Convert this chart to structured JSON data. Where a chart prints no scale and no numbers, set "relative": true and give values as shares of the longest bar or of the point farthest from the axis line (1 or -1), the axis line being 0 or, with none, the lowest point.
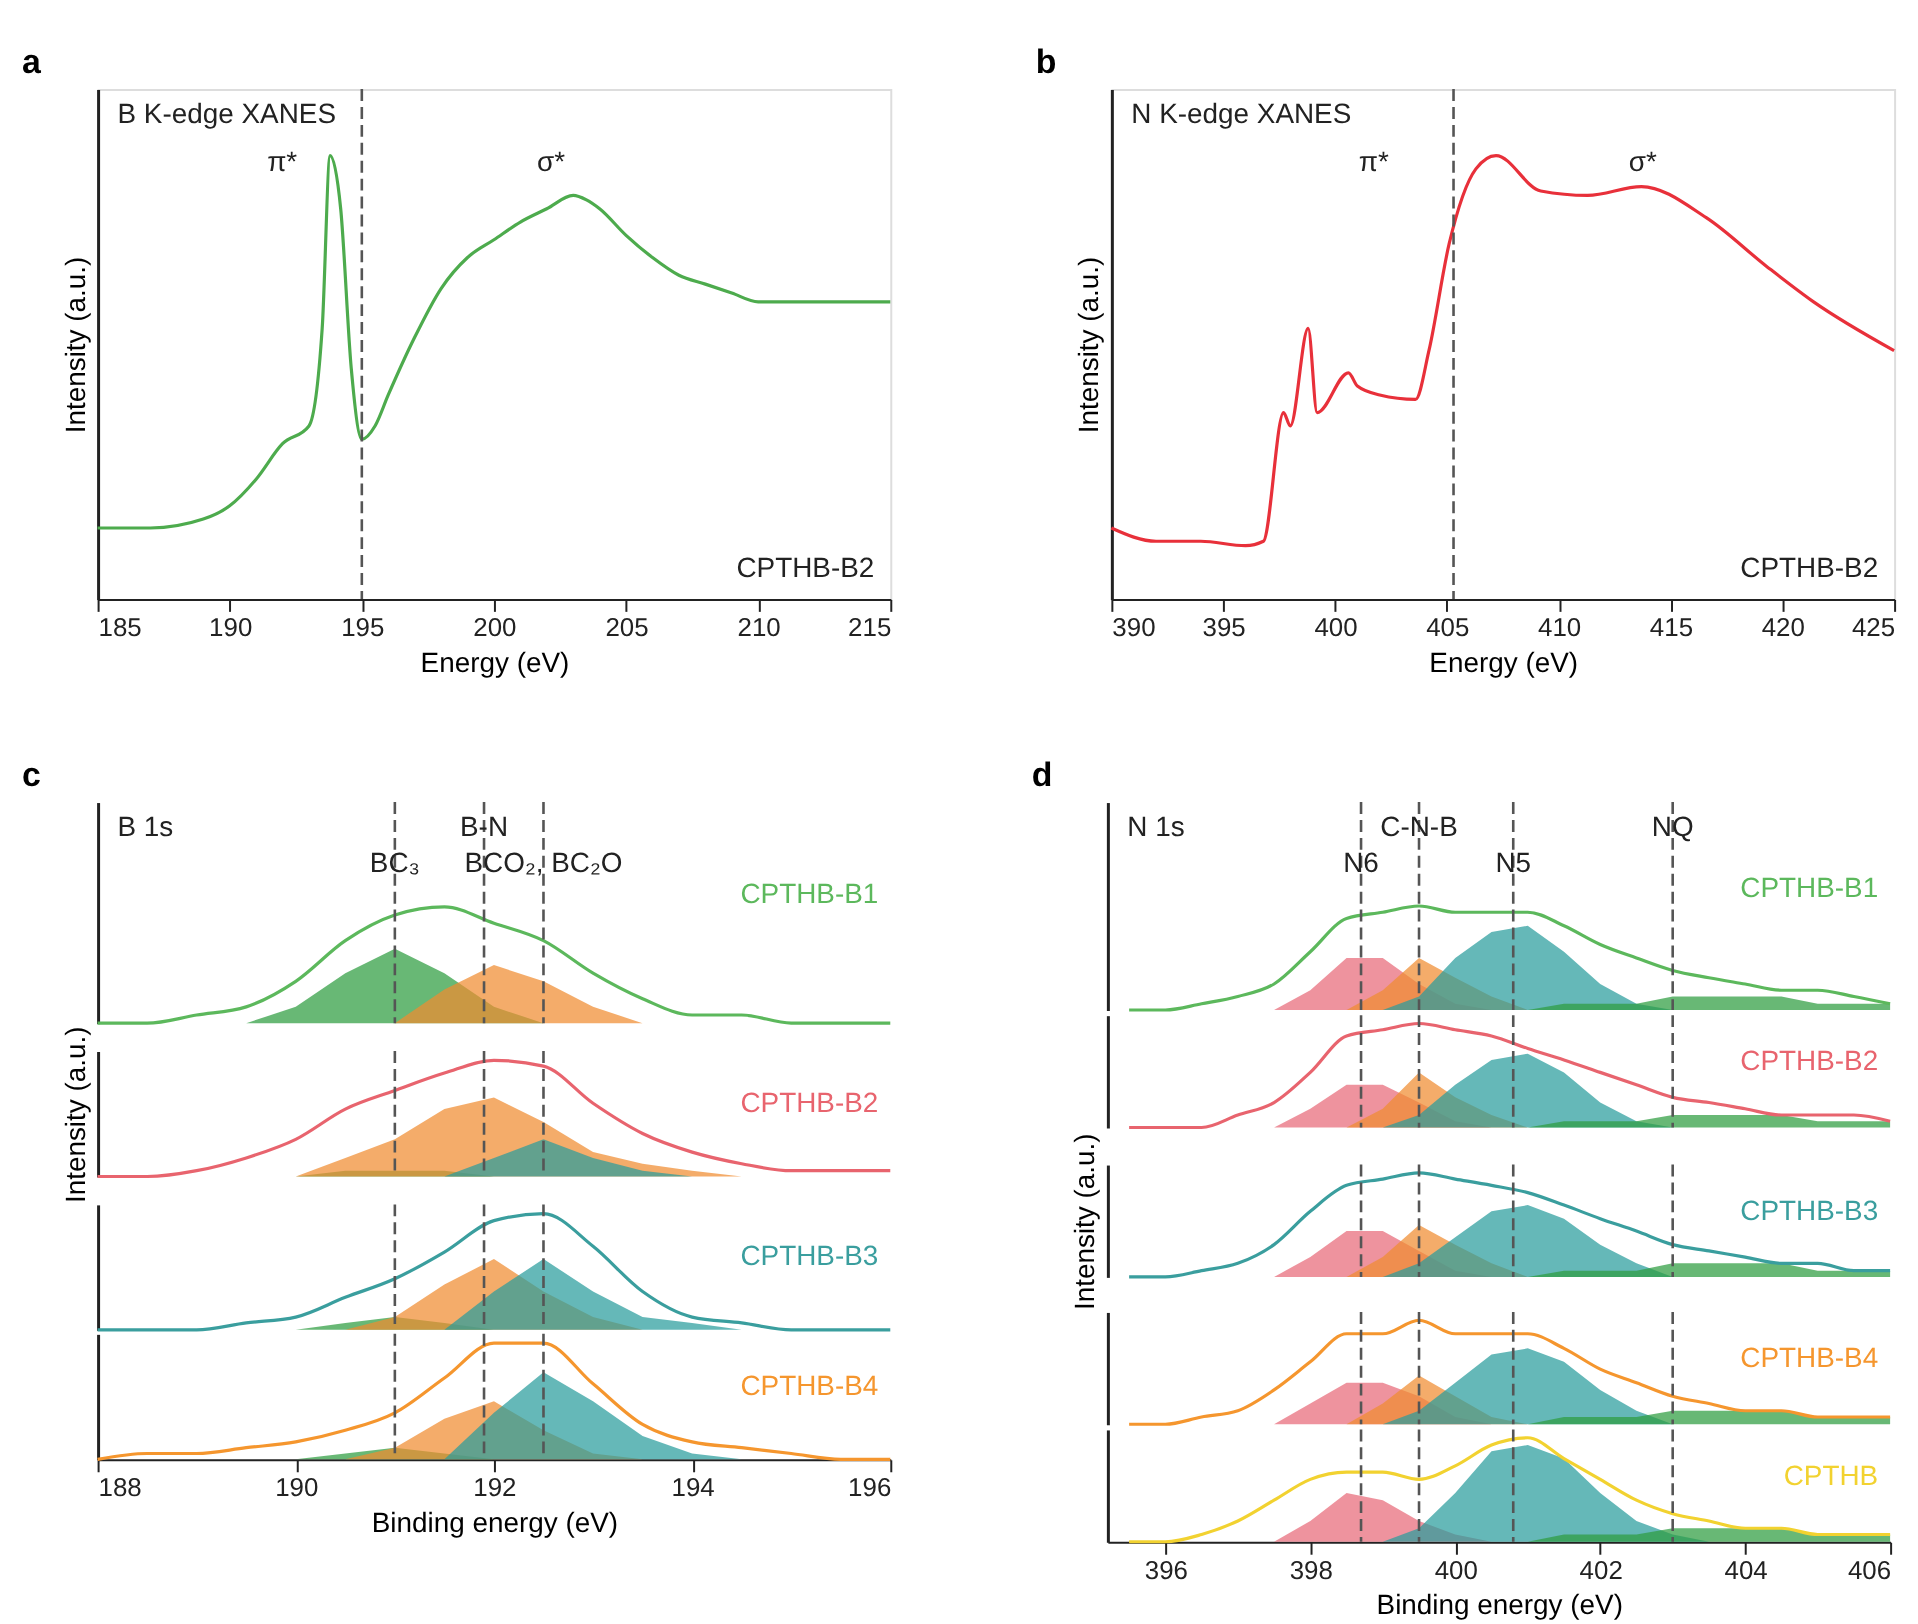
{
  "chart_data": [
    {
      "type": "line",
      "title": "B K-edge XANES",
      "xlabel": "Energy (eV)",
      "ylabel": "Intensity (a.u.)",
      "relative": true,
      "xlim": [
        185,
        215
      ],
      "xticks": [
        185,
        190,
        195,
        200,
        205,
        210,
        215
      ],
      "x": [
        185,
        187,
        189,
        190,
        191,
        192,
        193,
        193.5,
        193.8,
        194.2,
        194.6,
        195,
        195.5,
        196,
        197,
        198,
        199,
        200,
        201,
        202,
        203,
        203.5,
        204,
        205,
        206,
        207,
        208,
        209,
        210,
        212,
        215
      ],
      "series": [
        {
          "color": "#4dab4d",
          "values": [
            0.16,
            0.16,
            0.18,
            0.21,
            0.27,
            0.35,
            0.39,
            0.61,
            1.0,
            0.88,
            0.52,
            0.36,
            0.39,
            0.46,
            0.59,
            0.7,
            0.77,
            0.81,
            0.85,
            0.88,
            0.91,
            0.9,
            0.88,
            0.82,
            0.77,
            0.73,
            0.71,
            0.69,
            0.67,
            0.67,
            0.67
          ]
        }
      ],
      "ref_lines": [
        {
          "axis": "x",
          "value": 195
        }
      ],
      "annotations": [
        "a",
        "CPTHB-B2",
        "π*",
        "σ*"
      ]
    },
    {
      "type": "line",
      "title": "N K-edge XANES",
      "xlabel": "Energy (eV)",
      "ylabel": "Intensity (a.u.)",
      "relative": true,
      "xlim": [
        390,
        425
      ],
      "xticks": [
        390,
        395,
        400,
        405,
        410,
        415,
        420,
        425
      ],
      "x": [
        390,
        392,
        394,
        396,
        396.8,
        397.7,
        398,
        398.8,
        399.2,
        400.6,
        401,
        402,
        403.6,
        404.2,
        405.1,
        406.3,
        407.2,
        409.2,
        411.3,
        413.7,
        416.6,
        419.3,
        421.4,
        425
      ],
      "series": [
        {
          "color": "#e8303a",
          "values": [
            0.16,
            0.13,
            0.13,
            0.12,
            0.13,
            0.42,
            0.39,
            0.61,
            0.42,
            0.51,
            0.48,
            0.46,
            0.45,
            0.56,
            0.8,
            0.97,
            1.0,
            0.92,
            0.91,
            0.93,
            0.86,
            0.75,
            0.67,
            0.56
          ]
        }
      ],
      "ref_lines": [
        {
          "axis": "x",
          "value": 405.3
        }
      ],
      "annotations": [
        "b",
        "CPTHB-B2",
        "π*",
        "σ*"
      ]
    },
    {
      "type": "line",
      "title": "B 1s",
      "relative": true,
      "xlim": [
        188,
        196
      ],
      "tick_labels": false,
      "x": [
        188,
        188.5,
        189,
        189.5,
        190,
        190.5,
        191,
        191.5,
        192,
        192.5,
        193,
        193.5,
        194,
        194.5,
        195,
        195.5,
        196
      ],
      "series": [
        {
          "type": "area",
          "color": "#2e9c40",
          "values": [
            null,
            null,
            null,
            0,
            0.14,
            0.43,
            0.64,
            0.43,
            0.14,
            0,
            null,
            null,
            null,
            null,
            null,
            null,
            null
          ]
        },
        {
          "type": "area",
          "color": "#f08c30",
          "values": [
            null,
            null,
            null,
            null,
            null,
            null,
            0,
            0.29,
            0.5,
            0.36,
            0.14,
            0,
            null,
            null,
            null,
            null,
            null
          ]
        },
        {
          "name": "CPTHB-B1",
          "color": "#5cb85c",
          "values": [
            0,
            0,
            0.07,
            0.14,
            0.36,
            0.71,
            0.93,
            1,
            0.86,
            0.71,
            0.43,
            0.21,
            0.07,
            0.07,
            0,
            0,
            0
          ]
        }
      ],
      "ref_lines": [
        {
          "axis": "x",
          "value": 191,
          "label": "BC₃"
        },
        {
          "axis": "x",
          "value": 191.9,
          "label": "B-N"
        },
        {
          "axis": "x",
          "value": 192.5,
          "label": "BCO₂, BC₂O"
        }
      ],
      "annotations": [
        "c"
      ]
    },
    {
      "type": "line",
      "ylabel": "Intensity (a.u.)",
      "relative": true,
      "xlim": [
        188,
        196
      ],
      "tick_labels": false,
      "x": [
        188,
        188.5,
        189,
        189.5,
        190,
        190.5,
        191,
        191.5,
        192,
        192.5,
        193,
        193.5,
        194,
        194.5,
        195,
        195.5,
        196
      ],
      "series": [
        {
          "type": "area",
          "color": "#2e9c40",
          "values": [
            null,
            null,
            null,
            0,
            0,
            0.05,
            0.05,
            0.05,
            0,
            null,
            null,
            null,
            null,
            null,
            null,
            null,
            null
          ]
        },
        {
          "type": "area",
          "color": "#f08c30",
          "values": [
            null,
            null,
            null,
            null,
            0,
            0.16,
            0.32,
            0.58,
            0.68,
            0.47,
            0.21,
            0.11,
            0.05,
            0,
            null,
            null,
            null
          ]
        },
        {
          "type": "area",
          "color": "#2a9d9d",
          "values": [
            null,
            null,
            null,
            null,
            null,
            null,
            null,
            0,
            0.16,
            0.32,
            0.16,
            0.05,
            0,
            null,
            null,
            null,
            null
          ]
        },
        {
          "name": "CPTHB-B2",
          "color": "#e8646e",
          "values": [
            0,
            0,
            0.05,
            0.16,
            0.32,
            0.58,
            0.74,
            0.89,
            1,
            0.95,
            0.63,
            0.37,
            0.21,
            0.11,
            0.05,
            0.05,
            0.05
          ]
        }
      ],
      "ref_lines": [
        {
          "axis": "x",
          "value": 191
        },
        {
          "axis": "x",
          "value": 191.9
        },
        {
          "axis": "x",
          "value": 192.5
        }
      ]
    },
    {
      "type": "line",
      "relative": true,
      "xlim": [
        188,
        196
      ],
      "tick_labels": false,
      "x": [
        188,
        188.5,
        189,
        189.5,
        190,
        190.5,
        191,
        191.5,
        192,
        192.5,
        193,
        193.5,
        194,
        194.5,
        195,
        195.5,
        196
      ],
      "series": [
        {
          "type": "area",
          "color": "#2e9c40",
          "values": [
            null,
            null,
            null,
            null,
            0,
            0.06,
            0.11,
            0.06,
            0,
            null,
            null,
            null,
            null,
            null,
            null,
            null,
            null
          ]
        },
        {
          "type": "area",
          "color": "#f08c30",
          "values": [
            null,
            null,
            null,
            null,
            null,
            0,
            0.11,
            0.39,
            0.61,
            0.33,
            0.11,
            0,
            null,
            null,
            null,
            null,
            null
          ]
        },
        {
          "type": "area",
          "color": "#2a9d9d",
          "values": [
            null,
            null,
            null,
            null,
            null,
            null,
            null,
            0,
            0.33,
            0.61,
            0.33,
            0.11,
            0.06,
            0,
            null,
            null,
            null
          ]
        },
        {
          "name": "CPTHB-B3",
          "color": "#3a9e9e",
          "values": [
            0,
            0,
            0,
            0.06,
            0.11,
            0.28,
            0.44,
            0.67,
            0.94,
            1,
            0.72,
            0.33,
            0.11,
            0.06,
            0,
            0,
            0
          ]
        }
      ],
      "ref_lines": [
        {
          "axis": "x",
          "value": 191
        },
        {
          "axis": "x",
          "value": 191.9
        },
        {
          "axis": "x",
          "value": 192.5
        }
      ]
    },
    {
      "type": "line",
      "xlabel": "Binding energy (eV)",
      "relative": true,
      "xlim": [
        188,
        196
      ],
      "xticks": [
        188,
        190,
        192,
        194,
        196
      ],
      "x": [
        188,
        188.5,
        189,
        189.5,
        190,
        190.5,
        191,
        191.5,
        192,
        192.5,
        193,
        193.5,
        194,
        194.5,
        195,
        195.5,
        196
      ],
      "series": [
        {
          "type": "area",
          "color": "#2e9c40",
          "values": [
            null,
            null,
            null,
            null,
            0,
            0.05,
            0.1,
            0.05,
            0,
            null,
            null,
            null,
            null,
            null,
            null,
            null,
            null
          ]
        },
        {
          "type": "area",
          "color": "#f08c30",
          "values": [
            null,
            null,
            null,
            null,
            null,
            0,
            0.1,
            0.35,
            0.5,
            0.25,
            0.05,
            0,
            null,
            null,
            null,
            null,
            null
          ]
        },
        {
          "type": "area",
          "color": "#2a9d9d",
          "values": [
            null,
            null,
            null,
            null,
            null,
            null,
            null,
            0,
            0.4,
            0.75,
            0.5,
            0.2,
            0.05,
            0,
            null,
            null,
            null
          ]
        },
        {
          "name": "CPTHB-B4",
          "color": "#f5962e",
          "values": [
            0,
            0.05,
            0.05,
            0.1,
            0.15,
            0.25,
            0.4,
            0.7,
            1,
            1,
            0.65,
            0.3,
            0.15,
            0.1,
            0.05,
            0,
            0
          ]
        }
      ],
      "ref_lines": [
        {
          "axis": "x",
          "value": 191
        },
        {
          "axis": "x",
          "value": 191.9
        },
        {
          "axis": "x",
          "value": 192.5
        }
      ]
    },
    {
      "type": "line",
      "title": "N 1s",
      "relative": true,
      "xlim": [
        395.2,
        406
      ],
      "tick_labels": false,
      "x": [
        395.5,
        396,
        396.5,
        397,
        397.5,
        398,
        398.5,
        399,
        399.5,
        400,
        400.5,
        401,
        401.5,
        402,
        402.5,
        403,
        403.5,
        404,
        404.5,
        405,
        405.5,
        406
      ],
      "series": [
        {
          "type": "area",
          "color": "#e86a78",
          "values": [
            null,
            null,
            null,
            null,
            0,
            0.19,
            0.5,
            0.5,
            0.25,
            0.06,
            0,
            null,
            null,
            null,
            null,
            null,
            null,
            null,
            null,
            null,
            null,
            null
          ]
        },
        {
          "type": "area",
          "color": "#f08c30",
          "values": [
            null,
            null,
            null,
            null,
            null,
            null,
            0,
            0.19,
            0.5,
            0.31,
            0.13,
            0,
            null,
            null,
            null,
            null,
            null,
            null,
            null,
            null,
            null,
            null
          ]
        },
        {
          "type": "area",
          "color": "#2a9d9d",
          "values": [
            null,
            null,
            null,
            null,
            null,
            null,
            null,
            0,
            0.13,
            0.5,
            0.75,
            0.81,
            0.56,
            0.25,
            0.06,
            0,
            null,
            null,
            null,
            null,
            null,
            null
          ]
        },
        {
          "type": "area",
          "color": "#2e9c40",
          "values": [
            null,
            null,
            null,
            null,
            null,
            null,
            null,
            null,
            null,
            0,
            0,
            0,
            0.06,
            0.06,
            0.06,
            0.13,
            0.13,
            0.13,
            0.13,
            0.06,
            0.06,
            0.06
          ]
        },
        {
          "name": "CPTHB-B1",
          "color": "#5cb85c",
          "values": [
            0,
            0,
            0.06,
            0.13,
            0.25,
            0.56,
            0.88,
            0.94,
            1,
            0.94,
            0.94,
            0.94,
            0.81,
            0.63,
            0.5,
            0.38,
            0.31,
            0.25,
            0.19,
            0.19,
            0.13,
            0.06
          ]
        }
      ],
      "ref_lines": [
        {
          "axis": "x",
          "value": 398.7,
          "label": "N6"
        },
        {
          "axis": "x",
          "value": 399.5,
          "label": "C-N-B"
        },
        {
          "axis": "x",
          "value": 400.8,
          "label": "N5"
        },
        {
          "axis": "x",
          "value": 403,
          "label": "NQ"
        }
      ],
      "annotations": [
        "d"
      ]
    },
    {
      "type": "line",
      "relative": true,
      "xlim": [
        395.2,
        406
      ],
      "tick_labels": false,
      "x": [
        395.5,
        396,
        396.5,
        397,
        397.5,
        398,
        398.5,
        399,
        399.5,
        400,
        400.5,
        401,
        401.5,
        402,
        402.5,
        403,
        403.5,
        404,
        404.5,
        405,
        405.5,
        406
      ],
      "series": [
        {
          "type": "area",
          "color": "#e86a78",
          "values": [
            null,
            null,
            null,
            null,
            0,
            0.18,
            0.41,
            0.41,
            0.24,
            0.06,
            0,
            null,
            null,
            null,
            null,
            null,
            null,
            null,
            null,
            null,
            null,
            null
          ]
        },
        {
          "type": "area",
          "color": "#f08c30",
          "values": [
            null,
            null,
            null,
            null,
            null,
            null,
            0,
            0.18,
            0.53,
            0.29,
            0.12,
            0,
            null,
            null,
            null,
            null,
            null,
            null,
            null,
            null,
            null,
            null
          ]
        },
        {
          "type": "area",
          "color": "#2a9d9d",
          "values": [
            null,
            null,
            null,
            null,
            null,
            null,
            null,
            0,
            0.12,
            0.41,
            0.65,
            0.71,
            0.53,
            0.24,
            0.06,
            0,
            null,
            null,
            null,
            null,
            null,
            null
          ]
        },
        {
          "type": "area",
          "color": "#2e9c40",
          "values": [
            null,
            null,
            null,
            null,
            null,
            null,
            null,
            null,
            null,
            0,
            0,
            0,
            0.06,
            0.06,
            0.06,
            0.12,
            0.12,
            0.12,
            0.12,
            0.06,
            0.06,
            0.06
          ]
        },
        {
          "name": "CPTHB-B2",
          "color": "#e8646e",
          "values": [
            0,
            0,
            0,
            0.12,
            0.24,
            0.53,
            0.88,
            0.94,
            1,
            0.94,
            0.88,
            0.76,
            0.65,
            0.53,
            0.41,
            0.29,
            0.24,
            0.18,
            0.12,
            0.12,
            0.12,
            0.06
          ]
        }
      ],
      "ref_lines": [
        {
          "axis": "x",
          "value": 398.7
        },
        {
          "axis": "x",
          "value": 399.5
        },
        {
          "axis": "x",
          "value": 400.8
        },
        {
          "axis": "x",
          "value": 403
        }
      ]
    },
    {
      "type": "line",
      "ylabel": "Intensity (a.u.)",
      "relative": true,
      "xlim": [
        395.2,
        406
      ],
      "tick_labels": false,
      "x": [
        395.5,
        396,
        396.5,
        397,
        397.5,
        398,
        398.5,
        399,
        399.5,
        400,
        400.5,
        401,
        401.5,
        402,
        402.5,
        403,
        403.5,
        404,
        404.5,
        405,
        405.5,
        406
      ],
      "series": [
        {
          "type": "area",
          "color": "#e86a78",
          "values": [
            null,
            null,
            null,
            null,
            0,
            0.19,
            0.44,
            0.44,
            0.25,
            0.06,
            0,
            null,
            null,
            null,
            null,
            null,
            null,
            null,
            null,
            null,
            null,
            null
          ]
        },
        {
          "type": "area",
          "color": "#f08c30",
          "values": [
            null,
            null,
            null,
            null,
            null,
            null,
            0,
            0.19,
            0.5,
            0.31,
            0.13,
            0,
            null,
            null,
            null,
            null,
            null,
            null,
            null,
            null,
            null,
            null
          ]
        },
        {
          "type": "area",
          "color": "#2a9d9d",
          "values": [
            null,
            null,
            null,
            null,
            null,
            null,
            null,
            0,
            0.13,
            0.38,
            0.63,
            0.69,
            0.56,
            0.31,
            0.13,
            0,
            null,
            null,
            null,
            null,
            null,
            null
          ]
        },
        {
          "type": "area",
          "color": "#2e9c40",
          "values": [
            null,
            null,
            null,
            null,
            null,
            null,
            null,
            null,
            null,
            0,
            0,
            0,
            0.06,
            0.06,
            0.06,
            0.13,
            0.13,
            0.13,
            0.13,
            0.06,
            0.06,
            0.06
          ]
        },
        {
          "name": "CPTHB-B3",
          "color": "#3a9e9e",
          "values": [
            0,
            0,
            0.06,
            0.13,
            0.31,
            0.63,
            0.88,
            0.94,
            1,
            0.94,
            0.88,
            0.81,
            0.69,
            0.56,
            0.44,
            0.31,
            0.25,
            0.19,
            0.13,
            0.13,
            0.06,
            0.06
          ]
        }
      ],
      "ref_lines": [
        {
          "axis": "x",
          "value": 398.7
        },
        {
          "axis": "x",
          "value": 399.5
        },
        {
          "axis": "x",
          "value": 400.8
        },
        {
          "axis": "x",
          "value": 403
        }
      ]
    },
    {
      "type": "line",
      "relative": true,
      "xlim": [
        395.2,
        406
      ],
      "tick_labels": false,
      "x": [
        395.5,
        396,
        396.5,
        397,
        397.5,
        398,
        398.5,
        399,
        399.5,
        400,
        400.5,
        401,
        401.5,
        402,
        402.5,
        403,
        403.5,
        404,
        404.5,
        405,
        405.5,
        406
      ],
      "series": [
        {
          "type": "area",
          "color": "#e86a78",
          "values": [
            null,
            null,
            null,
            null,
            0,
            0.2,
            0.4,
            0.4,
            0.27,
            0.07,
            0,
            null,
            null,
            null,
            null,
            null,
            null,
            null,
            null,
            null,
            null,
            null
          ]
        },
        {
          "type": "area",
          "color": "#f08c30",
          "values": [
            null,
            null,
            null,
            null,
            null,
            null,
            0,
            0.2,
            0.47,
            0.27,
            0.07,
            0,
            null,
            null,
            null,
            null,
            null,
            null,
            null,
            null,
            null,
            null
          ]
        },
        {
          "type": "area",
          "color": "#2a9d9d",
          "values": [
            null,
            null,
            null,
            null,
            null,
            null,
            null,
            0,
            0.13,
            0.4,
            0.67,
            0.73,
            0.6,
            0.33,
            0.13,
            0,
            null,
            null,
            null,
            null,
            null,
            null
          ]
        },
        {
          "type": "area",
          "color": "#2e9c40",
          "values": [
            null,
            null,
            null,
            null,
            null,
            null,
            null,
            null,
            null,
            0,
            0,
            0,
            0.07,
            0.07,
            0.07,
            0.13,
            0.13,
            0.13,
            0.13,
            0.07,
            0.07,
            0.07
          ]
        },
        {
          "name": "CPTHB-B4",
          "color": "#f5962e",
          "values": [
            0,
            0,
            0.07,
            0.13,
            0.33,
            0.6,
            0.87,
            0.87,
            1,
            0.87,
            0.87,
            0.87,
            0.73,
            0.53,
            0.4,
            0.27,
            0.2,
            0.13,
            0.13,
            0.07,
            0.07,
            0.07
          ]
        }
      ],
      "ref_lines": [
        {
          "axis": "x",
          "value": 398.7
        },
        {
          "axis": "x",
          "value": 399.5
        },
        {
          "axis": "x",
          "value": 400.8
        },
        {
          "axis": "x",
          "value": 403
        }
      ]
    },
    {
      "type": "line",
      "xlabel": "Binding energy (eV)",
      "relative": true,
      "xlim": [
        395.2,
        406
      ],
      "xticks": [
        396,
        398,
        400,
        402,
        404,
        406
      ],
      "x": [
        395.5,
        396,
        396.5,
        397,
        397.5,
        398,
        398.5,
        399,
        399.5,
        400,
        400.5,
        401,
        401.5,
        402,
        402.5,
        403,
        403.5,
        404,
        404.5,
        405,
        405.5,
        406
      ],
      "series": [
        {
          "type": "area",
          "color": "#e86a78",
          "values": [
            null,
            null,
            null,
            null,
            0,
            0.2,
            0.47,
            0.4,
            0.2,
            0.07,
            0,
            null,
            null,
            null,
            null,
            null,
            null,
            null,
            null,
            null,
            null,
            null
          ]
        },
        {
          "type": "area",
          "color": "#2a9d9d",
          "values": [
            null,
            null,
            null,
            null,
            null,
            null,
            null,
            0,
            0.13,
            0.47,
            0.87,
            0.93,
            0.8,
            0.47,
            0.2,
            0.07,
            0,
            null,
            null,
            null,
            null,
            null
          ]
        },
        {
          "type": "area",
          "color": "#2e9c40",
          "values": [
            null,
            null,
            null,
            null,
            null,
            null,
            null,
            null,
            null,
            0,
            0,
            0,
            0.07,
            0.07,
            0.07,
            0.13,
            0.13,
            0.13,
            0.13,
            0.07,
            0.07,
            0.07
          ]
        },
        {
          "name": "CPTHB",
          "color": "#f2d230",
          "values": [
            0,
            0,
            0.07,
            0.2,
            0.4,
            0.6,
            0.67,
            0.67,
            0.6,
            0.73,
            0.93,
            1,
            0.8,
            0.6,
            0.4,
            0.27,
            0.2,
            0.13,
            0.13,
            0.07,
            0.07,
            0.07
          ]
        }
      ],
      "ref_lines": [
        {
          "axis": "x",
          "value": 398.7
        },
        {
          "axis": "x",
          "value": 399.5
        },
        {
          "axis": "x",
          "value": 400.8
        },
        {
          "axis": "x",
          "value": 403
        }
      ]
    }
  ]
}
